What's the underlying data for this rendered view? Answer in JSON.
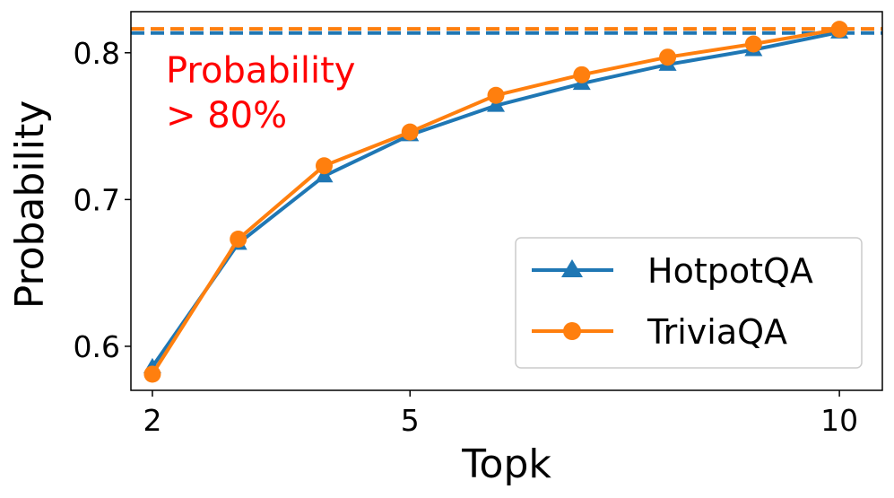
{
  "chart_data": {
    "type": "line",
    "xlabel": "Topk",
    "ylabel": "Probability",
    "xlim": [
      1.75,
      10.5
    ],
    "ylim": [
      0.57,
      0.828
    ],
    "x_ticks": [
      2,
      5,
      10
    ],
    "y_ticks": [
      0.6,
      0.7,
      0.8
    ],
    "x_tick_labels": [
      "2",
      "5",
      "10"
    ],
    "y_tick_labels": [
      "0.6",
      "0.7",
      "0.8"
    ],
    "grid": false,
    "legend_position": "lower-right",
    "annotation": {
      "lines": [
        "Probability",
        "> 80%"
      ]
    },
    "series": [
      {
        "name": "HotpotQA",
        "color": "#1f77b4",
        "marker": "triangle",
        "x": [
          2,
          3,
          4,
          5,
          6,
          7,
          8,
          9,
          10
        ],
        "y": [
          0.586,
          0.67,
          0.716,
          0.744,
          0.764,
          0.779,
          0.792,
          0.802,
          0.814
        ],
        "reference_line": 0.8135
      },
      {
        "name": "TriviaQA",
        "color": "#ff7f0e",
        "marker": "circle",
        "x": [
          2,
          3,
          4,
          5,
          6,
          7,
          8,
          9,
          10
        ],
        "y": [
          0.581,
          0.673,
          0.723,
          0.746,
          0.771,
          0.785,
          0.797,
          0.806,
          0.816
        ],
        "reference_line": 0.8163
      }
    ]
  }
}
